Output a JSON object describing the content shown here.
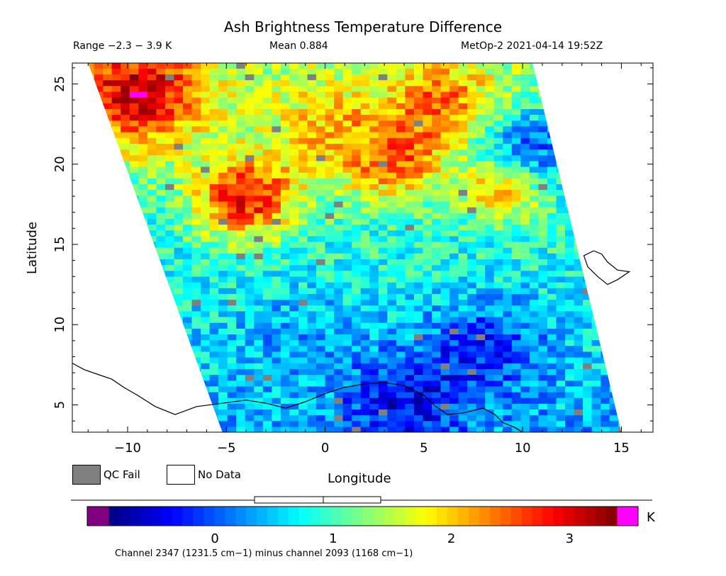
{
  "header": {
    "range": "Range −2.3 − 3.9 K",
    "mean": "Mean 0.884",
    "satellite_time": "MetOp-2 2021-04-14 19:52Z"
  },
  "legend": {
    "qc_fail": {
      "label": "QC Fail",
      "color": "#808080"
    },
    "no_data": {
      "label": "No Data",
      "color": "#ffffff"
    }
  },
  "footer": "Channel 2347 (1231.5 cm−1) minus channel 2093 (1168 cm−1)",
  "chart_data": {
    "type": "heatmap",
    "title": "Ash Brightness Temperature Difference",
    "xlabel": "Longitude",
    "ylabel": "Latitude",
    "xlim": [
      -12.8,
      16.6
    ],
    "ylim": [
      3.3,
      26.3
    ],
    "x_ticks": [
      -10,
      -5,
      0,
      5,
      10,
      15
    ],
    "y_ticks": [
      5,
      10,
      15,
      20,
      25
    ],
    "x_tick_labels": [
      "−10",
      "−5",
      "0",
      "5",
      "10",
      "15"
    ],
    "y_tick_labels": [
      "5",
      "10",
      "15",
      "20",
      "25"
    ],
    "value_range": [
      -2.3,
      3.9
    ],
    "mean": 0.884,
    "units": "K",
    "swath_corners": [
      [
        -12.0,
        26.3
      ],
      [
        10.5,
        26.3
      ],
      [
        15.0,
        3.3
      ],
      [
        -5.2,
        3.3
      ]
    ],
    "colorbar": {
      "vmin": -0.9,
      "vmax": 3.4,
      "ticks": [
        0,
        1,
        2,
        3
      ],
      "tick_labels": [
        "0",
        "1",
        "2",
        "3"
      ],
      "unit": "K",
      "under_color": "#800080",
      "over_color": "#ff00ff",
      "colors": [
        "#00007f",
        "#0000ff",
        "#0080ff",
        "#00ffff",
        "#80ff80",
        "#ffff00",
        "#ff8000",
        "#ff0000",
        "#7f0000"
      ]
    },
    "regions": [
      {
        "lon": -9.5,
        "lat": 24.5,
        "value": 3.1,
        "spread": 3.5
      },
      {
        "lon": -4.0,
        "lat": 18.0,
        "value": 2.9,
        "spread": 2.5
      },
      {
        "lon": 3.5,
        "lat": 20.5,
        "value": 2.5,
        "spread": 2.5
      },
      {
        "lon": 6.0,
        "lat": 24.0,
        "value": 2.4,
        "spread": 2.5
      },
      {
        "lon": 0.0,
        "lat": 22.5,
        "value": 2.0,
        "spread": 3.0
      },
      {
        "lon": 9.0,
        "lat": 18.5,
        "value": 2.4,
        "spread": 1.8
      },
      {
        "lon": 10.5,
        "lat": 21.0,
        "value": 0.0,
        "spread": 2.5
      },
      {
        "lon": 4.0,
        "lat": 5.0,
        "value": -0.4,
        "spread": 3.0
      },
      {
        "lon": 8.0,
        "lat": 8.5,
        "value": -0.2,
        "spread": 3.0
      },
      {
        "lon": -1.0,
        "lat": 9.0,
        "value": 0.3,
        "spread": 3.0
      }
    ],
    "coastlines": [
      [
        [
          -12.8,
          7.6
        ],
        [
          -12.2,
          7.2
        ],
        [
          -11.5,
          6.9
        ],
        [
          -10.8,
          6.6
        ],
        [
          -10.2,
          6.1
        ],
        [
          -9.5,
          5.6
        ],
        [
          -8.6,
          4.9
        ],
        [
          -7.6,
          4.4
        ],
        [
          -6.5,
          4.9
        ],
        [
          -5.2,
          5.1
        ],
        [
          -4.0,
          5.3
        ],
        [
          -3.0,
          5.1
        ],
        [
          -2.0,
          4.8
        ],
        [
          -1.0,
          5.2
        ],
        [
          0.0,
          5.7
        ],
        [
          1.0,
          6.1
        ],
        [
          2.0,
          6.3
        ],
        [
          3.0,
          6.4
        ],
        [
          4.0,
          6.2
        ],
        [
          5.0,
          5.6
        ],
        [
          5.6,
          4.9
        ],
        [
          6.2,
          4.4
        ],
        [
          7.0,
          4.5
        ],
        [
          8.0,
          4.8
        ],
        [
          8.6,
          4.4
        ],
        [
          9.0,
          3.9
        ],
        [
          9.6,
          3.6
        ],
        [
          10.0,
          3.3
        ]
      ],
      [
        [
          13.6,
          14.6
        ],
        [
          14.0,
          14.4
        ],
        [
          14.3,
          13.9
        ],
        [
          14.8,
          13.4
        ],
        [
          15.4,
          13.3
        ],
        [
          14.8,
          12.8
        ],
        [
          14.3,
          12.5
        ],
        [
          13.8,
          13.0
        ],
        [
          13.3,
          13.6
        ],
        [
          13.1,
          14.3
        ],
        [
          13.6,
          14.6
        ]
      ]
    ]
  }
}
